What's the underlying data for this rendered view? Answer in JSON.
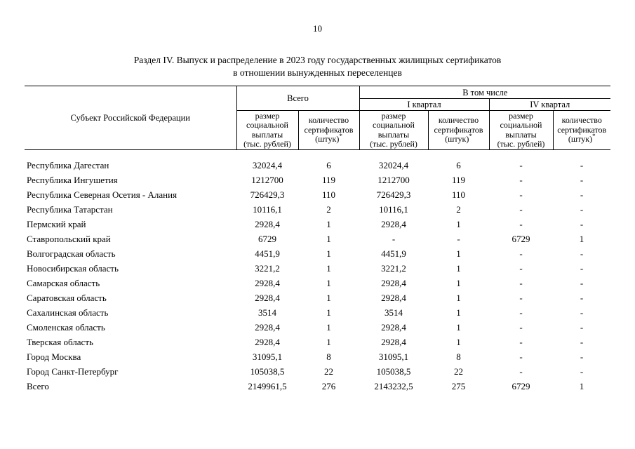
{
  "page": {
    "number": "10",
    "title_line1": "Раздел IV. Выпуск и распределение в 2023 году государственных жилищных сертификатов",
    "title_line2": "в отношении вынужденных переселенцев"
  },
  "table": {
    "header": {
      "subject": "Субъект Российской Федерации",
      "total": "Всего",
      "including": "В том числе",
      "q1": "I квартал",
      "q4": "IV квартал",
      "amount_label": "размер\nсоциальной\nвыплаты\n(тыс. рублей)",
      "count_label": "количество\nсертификатов\n(штук)",
      "count_sup": "*"
    },
    "rows": [
      {
        "name": "Республика Дагестан",
        "total_amount": "32024,4",
        "total_count": "6",
        "q1_amount": "32024,4",
        "q1_count": "6",
        "q4_amount": "-",
        "q4_count": "-"
      },
      {
        "name": "Республика Ингушетия",
        "total_amount": "1212700",
        "total_count": "119",
        "q1_amount": "1212700",
        "q1_count": "119",
        "q4_amount": "-",
        "q4_count": "-"
      },
      {
        "name": "Республика Северная Осетия - Алания",
        "total_amount": "726429,3",
        "total_count": "110",
        "q1_amount": "726429,3",
        "q1_count": "110",
        "q4_amount": "-",
        "q4_count": "-"
      },
      {
        "name": "Республика Татарстан",
        "total_amount": "10116,1",
        "total_count": "2",
        "q1_amount": "10116,1",
        "q1_count": "2",
        "q4_amount": "-",
        "q4_count": "-"
      },
      {
        "name": "Пермский край",
        "total_amount": "2928,4",
        "total_count": "1",
        "q1_amount": "2928,4",
        "q1_count": "1",
        "q4_amount": "-",
        "q4_count": "-"
      },
      {
        "name": "Ставропольский край",
        "total_amount": "6729",
        "total_count": "1",
        "q1_amount": "-",
        "q1_count": "-",
        "q4_amount": "6729",
        "q4_count": "1"
      },
      {
        "name": "Волгоградская область",
        "total_amount": "4451,9",
        "total_count": "1",
        "q1_amount": "4451,9",
        "q1_count": "1",
        "q4_amount": "-",
        "q4_count": "-"
      },
      {
        "name": "Новосибирская область",
        "total_amount": "3221,2",
        "total_count": "1",
        "q1_amount": "3221,2",
        "q1_count": "1",
        "q4_amount": "-",
        "q4_count": "-"
      },
      {
        "name": "Самарская область",
        "total_amount": "2928,4",
        "total_count": "1",
        "q1_amount": "2928,4",
        "q1_count": "1",
        "q4_amount": "-",
        "q4_count": "-"
      },
      {
        "name": "Саратовская область",
        "total_amount": "2928,4",
        "total_count": "1",
        "q1_amount": "2928,4",
        "q1_count": "1",
        "q4_amount": "-",
        "q4_count": "-"
      },
      {
        "name": "Сахалинская область",
        "total_amount": "3514",
        "total_count": "1",
        "q1_amount": "3514",
        "q1_count": "1",
        "q4_amount": "-",
        "q4_count": "-"
      },
      {
        "name": "Смоленская область",
        "total_amount": "2928,4",
        "total_count": "1",
        "q1_amount": "2928,4",
        "q1_count": "1",
        "q4_amount": "-",
        "q4_count": "-"
      },
      {
        "name": "Тверская область",
        "total_amount": "2928,4",
        "total_count": "1",
        "q1_amount": "2928,4",
        "q1_count": "1",
        "q4_amount": "-",
        "q4_count": "-"
      },
      {
        "name": "Город Москва",
        "total_amount": "31095,1",
        "total_count": "8",
        "q1_amount": "31095,1",
        "q1_count": "8",
        "q4_amount": "-",
        "q4_count": "-"
      },
      {
        "name": "Город Санкт-Петербург",
        "total_amount": "105038,5",
        "total_count": "22",
        "q1_amount": "105038,5",
        "q1_count": "22",
        "q4_amount": "-",
        "q4_count": "-"
      },
      {
        "name": "Всего",
        "total_amount": "2149961,5",
        "total_count": "276",
        "q1_amount": "2143232,5",
        "q1_count": "275",
        "q4_amount": "6729",
        "q4_count": "1"
      }
    ]
  }
}
